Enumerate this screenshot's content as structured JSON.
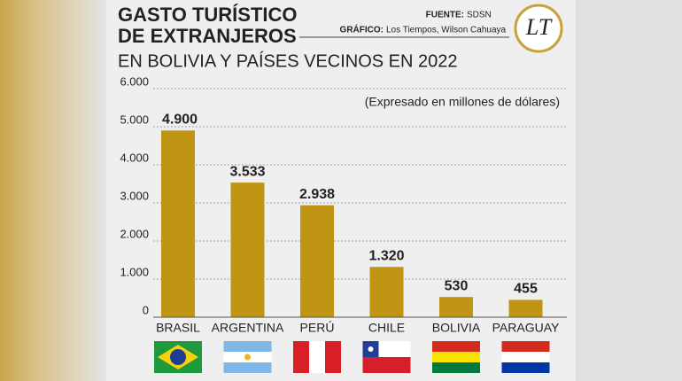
{
  "header": {
    "title_line1": "GASTO TURÍSTICO",
    "title_line2": "DE EXTRANJEROS",
    "subtitle": "EN BOLIVIA Y PAÍSES VECINOS EN 2022",
    "source_label": "FUENTE:",
    "source": "SDSN",
    "graphic_label": "GRÁFICO:",
    "graphic": "Los Tiempos, Wilson Cahuaya",
    "logo": "LT"
  },
  "chart_data": {
    "type": "bar",
    "note": "(Expresado en millones de dólares)",
    "categories": [
      "BRASIL",
      "ARGENTINA",
      "PERÚ",
      "CHILE",
      "BOLIVIA",
      "PARAGUAY"
    ],
    "values": [
      4900,
      3533,
      2938,
      1320,
      530,
      455
    ],
    "value_labels": [
      "4.900",
      "3.533",
      "2.938",
      "1.320",
      "530",
      "455"
    ],
    "color": "#bf9513",
    "ylim": [
      0,
      6000
    ],
    "yticks": [
      0,
      {
        "value": 1000,
        "label": "1.000"
      },
      {
        "value": 2000,
        "label": "2.000"
      },
      {
        "value": 3000,
        "label": "3.000"
      },
      {
        "value": 4000,
        "label": "4.000"
      },
      {
        "value": 5000,
        "label": "5.000"
      },
      {
        "value": 6000,
        "label": "6.000"
      }
    ],
    "grid": true
  }
}
